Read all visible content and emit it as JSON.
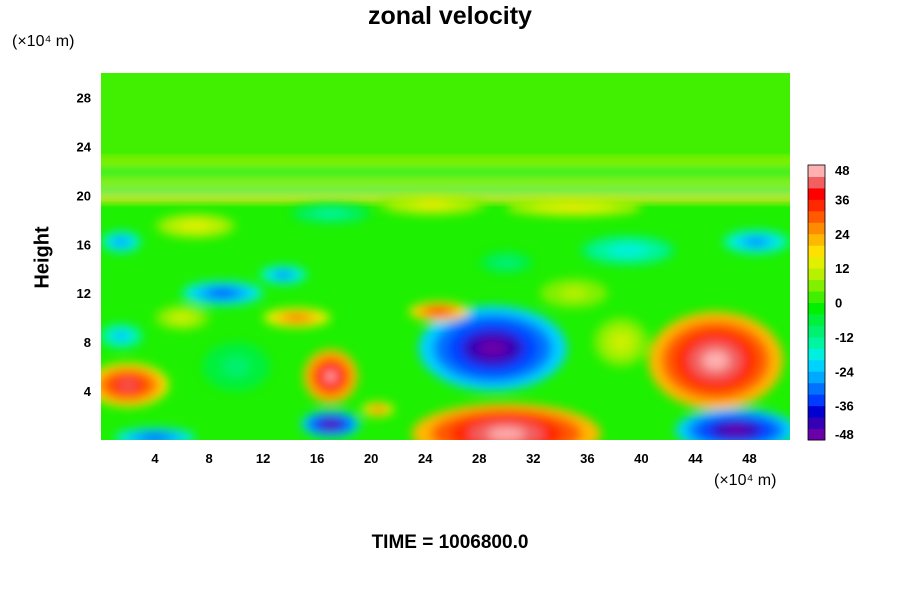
{
  "chart_data": {
    "type": "heatmap",
    "title": "zonal velocity",
    "ylabel": "Height",
    "xlabel": "",
    "y_unit": "(×10⁴ m)",
    "x_unit": "(×10⁴ m)",
    "xlim": [
      0,
      51
    ],
    "ylim": [
      0,
      30
    ],
    "x_ticks": [
      4,
      8,
      12,
      16,
      20,
      24,
      28,
      32,
      36,
      40,
      44,
      48
    ],
    "y_ticks": [
      4,
      8,
      12,
      16,
      20,
      24,
      28
    ],
    "colorbar": {
      "range": [
        -48,
        48
      ],
      "ticks": [
        48,
        36,
        24,
        12,
        0,
        -12,
        -24,
        -36,
        -48
      ],
      "levels": [
        "#6a00a8",
        "#3500b5",
        "#0000d0",
        "#003cff",
        "#0072ff",
        "#00a8ff",
        "#00d2ff",
        "#00f0e0",
        "#00f5a0",
        "#00f070",
        "#00f03c",
        "#00f000",
        "#40f000",
        "#80f000",
        "#b8f000",
        "#e0f000",
        "#ffe000",
        "#ffb800",
        "#ff8c00",
        "#ff5a00",
        "#ff2800",
        "#ff0000",
        "#f06060",
        "#ffb0b0"
      ]
    },
    "features": [
      {
        "x": 29.0,
        "y": 7.5,
        "rx": 5.5,
        "ry": 3.5,
        "value": -48
      },
      {
        "x": 30.0,
        "y": 0.5,
        "rx": 7.0,
        "ry": 2.5,
        "value": 48
      },
      {
        "x": 45.5,
        "y": 6.5,
        "rx": 5.0,
        "ry": 4.0,
        "value": 48
      },
      {
        "x": 47.0,
        "y": 0.8,
        "rx": 4.5,
        "ry": 1.8,
        "value": -48
      },
      {
        "x": 17.0,
        "y": 5.2,
        "rx": 2.0,
        "ry": 2.2,
        "value": 44
      },
      {
        "x": 17.0,
        "y": 1.3,
        "rx": 2.2,
        "ry": 1.1,
        "value": -48
      },
      {
        "x": 2.0,
        "y": 4.5,
        "rx": 3.0,
        "ry": 1.8,
        "value": 40
      },
      {
        "x": 4.0,
        "y": 0.2,
        "rx": 3.0,
        "ry": 0.8,
        "value": -36
      },
      {
        "x": 9.0,
        "y": 12.0,
        "rx": 3.0,
        "ry": 1.0,
        "value": -36
      },
      {
        "x": 13.5,
        "y": 13.5,
        "rx": 1.8,
        "ry": 0.8,
        "value": -30
      },
      {
        "x": 1.5,
        "y": 16.2,
        "rx": 1.5,
        "ry": 0.9,
        "value": -28
      },
      {
        "x": 48.5,
        "y": 16.2,
        "rx": 2.5,
        "ry": 1.0,
        "value": -30
      },
      {
        "x": 1.5,
        "y": 8.5,
        "rx": 1.6,
        "ry": 1.0,
        "value": -26
      },
      {
        "x": 25.0,
        "y": 10.5,
        "rx": 2.2,
        "ry": 0.8,
        "value": 34
      },
      {
        "x": 14.5,
        "y": 10.0,
        "rx": 2.5,
        "ry": 0.8,
        "value": 28
      },
      {
        "x": 20.5,
        "y": 2.5,
        "rx": 1.2,
        "ry": 0.6,
        "value": 30
      },
      {
        "x": 38.5,
        "y": 8.0,
        "rx": 2.0,
        "ry": 2.0,
        "value": 12
      },
      {
        "x": 24.5,
        "y": 19.2,
        "rx": 4.0,
        "ry": 0.8,
        "value": 16
      },
      {
        "x": 30.0,
        "y": 14.5,
        "rx": 2.0,
        "ry": 0.9,
        "value": -12
      },
      {
        "x": 39.0,
        "y": 15.5,
        "rx": 3.5,
        "ry": 1.2,
        "value": -20
      },
      {
        "x": 7.0,
        "y": 17.5,
        "rx": 3.0,
        "ry": 1.0,
        "value": 14
      },
      {
        "x": 35.0,
        "y": 19.0,
        "rx": 5.0,
        "ry": 0.7,
        "value": 18
      },
      {
        "x": 17.0,
        "y": 18.5,
        "rx": 3.0,
        "ry": 0.8,
        "value": -16
      },
      {
        "x": 10.0,
        "y": 6.0,
        "rx": 2.5,
        "ry": 2.0,
        "value": -10
      },
      {
        "x": 35.0,
        "y": 12.0,
        "rx": 2.5,
        "ry": 1.2,
        "value": 10
      },
      {
        "x": 6.0,
        "y": 10.0,
        "rx": 2.0,
        "ry": 1.0,
        "value": 12
      }
    ],
    "bands": [
      {
        "y": 22.8,
        "value": 8
      },
      {
        "y": 21.8,
        "value": -8
      },
      {
        "y": 21.0,
        "value": 10
      },
      {
        "y": 20.3,
        "value": -10
      },
      {
        "y": 19.7,
        "value": 16
      }
    ]
  },
  "footer": {
    "label": "TIME = 1006800.0"
  }
}
